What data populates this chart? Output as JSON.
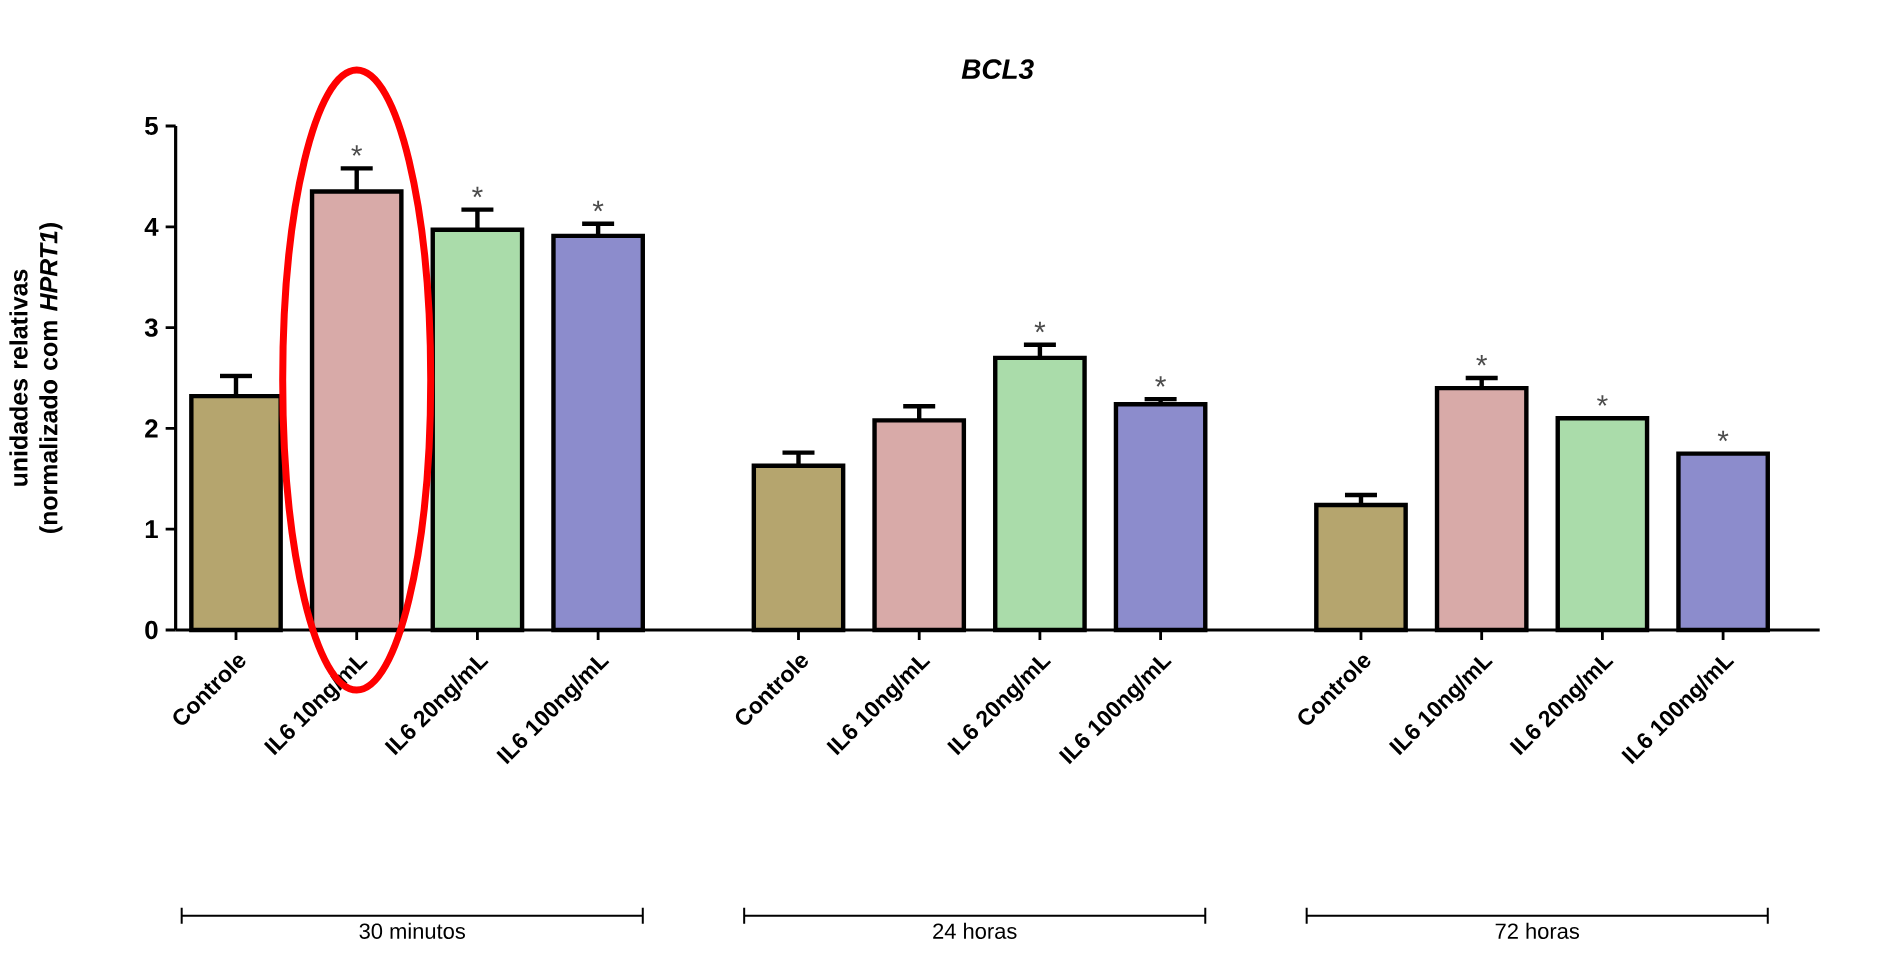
{
  "chart_data": {
    "type": "bar",
    "title": "BCL3",
    "ylabel": "unidades relativas (normalizado com *HPRT1*)",
    "categories": [
      "Controle",
      "IL6 10ng/mL",
      "IL6 20ng/mL",
      "IL6 100ng/mL",
      "Controle",
      "IL6 10ng/mL",
      "IL6 20ng/mL",
      "IL6 100ng/mL",
      "Controle",
      "IL6 10ng/mL",
      "IL6 20ng/mL",
      "IL6 100ng/mL"
    ],
    "values": [
      2.32,
      4.35,
      3.97,
      3.91,
      1.63,
      2.08,
      2.7,
      2.24,
      1.24,
      2.4,
      2.1,
      1.75
    ],
    "errors": [
      0.2,
      0.23,
      0.2,
      0.12,
      0.13,
      0.14,
      0.13,
      0.05,
      0.1,
      0.1,
      null,
      null
    ],
    "value_labels": [
      null,
      "*",
      "*",
      "*",
      null,
      null,
      "*",
      "*",
      null,
      "*",
      "*",
      "*"
    ],
    "colors": [
      "#b5a56e",
      "#d8aaa8",
      "#aadcaa",
      "#8c8ccc",
      "#b5a56e",
      "#d8aaa8",
      "#aadcaa",
      "#8c8ccc",
      "#b5a56e",
      "#d8aaa8",
      "#aadcaa",
      "#8c8ccc"
    ],
    "annotations": [
      "30 minutos",
      "24 horas",
      "72 horas"
    ],
    "ylim": [
      0,
      5
    ],
    "yticks": [
      0,
      1,
      2,
      3,
      4,
      5
    ]
  }
}
